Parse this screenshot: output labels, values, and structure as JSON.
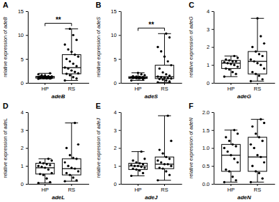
{
  "chart_data": [
    {
      "type": "box",
      "title": "A",
      "x_label": "adeB",
      "y_label": "relative expression of adeB",
      "categories": [
        "HP",
        "RS"
      ],
      "ylim": [
        0,
        15
      ],
      "yticks": [
        0,
        5,
        10,
        15
      ],
      "annotation": "**",
      "boxes": [
        {
          "min": 0.85,
          "q1": 1.0,
          "median": 1.2,
          "q3": 1.35,
          "max": 2.0,
          "points": [
            0.85,
            0.9,
            0.95,
            1.0,
            1.0,
            1.05,
            1.1,
            1.1,
            1.15,
            1.2,
            1.2,
            1.25,
            1.3,
            1.3,
            1.35,
            1.4,
            1.5,
            1.6,
            1.8,
            2.0
          ]
        },
        {
          "min": 0.5,
          "q1": 1.9,
          "median": 3.2,
          "q3": 5.9,
          "max": 11.3,
          "points": [
            0.5,
            0.9,
            1.2,
            1.6,
            1.9,
            2.0,
            2.3,
            2.6,
            3.0,
            3.2,
            3.5,
            4.0,
            4.5,
            5.0,
            5.5,
            5.9,
            6.5,
            7.0,
            8.0,
            9.0,
            10.0,
            11.3
          ]
        }
      ]
    },
    {
      "type": "box",
      "title": "B",
      "x_label": "adeS",
      "y_label": "relative expression of adeS",
      "categories": [
        "HP",
        "RS"
      ],
      "ylim": [
        0,
        15
      ],
      "yticks": [
        0,
        5,
        10,
        15
      ],
      "annotation": "**",
      "boxes": [
        {
          "min": 0.5,
          "q1": 0.95,
          "median": 1.1,
          "q3": 1.3,
          "max": 2.1,
          "points": [
            0.5,
            0.8,
            0.9,
            0.95,
            1.0,
            1.0,
            1.05,
            1.1,
            1.1,
            1.15,
            1.2,
            1.25,
            1.3,
            1.4,
            1.6,
            1.8,
            2.1
          ]
        },
        {
          "min": 0.1,
          "q1": 0.9,
          "median": 1.3,
          "q3": 3.7,
          "max": 10.3,
          "points": [
            0.1,
            0.3,
            0.5,
            0.7,
            0.8,
            0.9,
            1.0,
            1.1,
            1.2,
            1.3,
            1.5,
            1.8,
            2.2,
            3.0,
            3.7,
            4.5,
            5.5,
            6.6,
            7.5,
            9.5,
            10.3
          ]
        }
      ]
    },
    {
      "type": "box",
      "title": "C",
      "x_label": "adeG",
      "y_label": "relative expression of adeG",
      "categories": [
        "HP",
        "RS"
      ],
      "ylim": [
        0,
        4
      ],
      "yticks": [
        0,
        1,
        2,
        3,
        4
      ],
      "boxes": [
        {
          "min": 0.35,
          "q1": 0.8,
          "median": 1.1,
          "q3": 1.25,
          "max": 1.5,
          "points": [
            0.35,
            0.5,
            0.6,
            0.75,
            0.8,
            0.9,
            1.0,
            1.05,
            1.1,
            1.15,
            1.2,
            1.2,
            1.25,
            1.3,
            1.4,
            1.5
          ]
        },
        {
          "min": 0.1,
          "q1": 0.5,
          "median": 1.2,
          "q3": 1.75,
          "max": 3.6,
          "points": [
            0.1,
            0.2,
            0.4,
            0.5,
            0.6,
            0.8,
            1.0,
            1.1,
            1.2,
            1.3,
            1.5,
            1.6,
            1.75,
            2.0,
            2.2,
            2.6,
            3.6
          ]
        }
      ]
    },
    {
      "type": "box",
      "title": "D",
      "x_label": "adeL",
      "y_label": "relative expression of adeL",
      "categories": [
        "HP",
        "RS"
      ],
      "ylim": [
        0,
        4
      ],
      "yticks": [
        0,
        1,
        2,
        3,
        4
      ],
      "boxes": [
        {
          "min": 0.05,
          "q1": 0.55,
          "median": 0.9,
          "q3": 1.15,
          "max": 1.4,
          "points": [
            0.05,
            0.1,
            0.3,
            0.5,
            0.55,
            0.6,
            0.8,
            0.9,
            0.95,
            1.0,
            1.05,
            1.1,
            1.15,
            1.2,
            1.3,
            1.4
          ]
        },
        {
          "min": 0.15,
          "q1": 0.5,
          "median": 0.85,
          "q3": 1.4,
          "max": 3.4,
          "points": [
            0.15,
            0.2,
            0.35,
            0.5,
            0.6,
            0.7,
            0.85,
            0.9,
            1.0,
            1.2,
            1.4,
            1.45,
            1.6,
            2.0,
            2.2,
            3.4
          ]
        }
      ]
    },
    {
      "type": "box",
      "title": "E",
      "x_label": "adeJ",
      "y_label": "relative expression of adeJ",
      "categories": [
        "HP",
        "RS"
      ],
      "ylim": [
        0,
        4
      ],
      "yticks": [
        0,
        1,
        2,
        3,
        4
      ],
      "boxes": [
        {
          "min": 0.45,
          "q1": 0.8,
          "median": 1.0,
          "q3": 1.15,
          "max": 1.8,
          "points": [
            0.45,
            0.6,
            0.75,
            0.8,
            0.85,
            0.9,
            0.95,
            1.0,
            1.0,
            1.05,
            1.1,
            1.15,
            1.2,
            1.3,
            1.4,
            1.8
          ]
        },
        {
          "min": 0.2,
          "q1": 0.85,
          "median": 1.1,
          "q3": 1.5,
          "max": 3.8,
          "points": [
            0.2,
            0.5,
            0.7,
            0.85,
            0.9,
            1.0,
            1.1,
            1.1,
            1.2,
            1.3,
            1.4,
            1.5,
            1.7,
            1.9,
            2.4,
            3.8
          ]
        }
      ]
    },
    {
      "type": "box",
      "title": "F",
      "x_label": "adeN",
      "y_label": "relative expression of adeN",
      "categories": [
        "HP",
        "RS"
      ],
      "ylim": [
        0,
        2
      ],
      "yticks": [
        {
          "value": 0,
          "label": "0.0"
        },
        0.5,
        {
          "value": 1,
          "label": "1.0"
        },
        1.5,
        {
          "value": 2,
          "label": "2.0"
        }
      ],
      "boxes": [
        {
          "min": 0.05,
          "q1": 0.35,
          "median": 0.8,
          "q3": 1.1,
          "max": 1.5,
          "points": [
            0.05,
            0.1,
            0.2,
            0.35,
            0.4,
            0.6,
            0.7,
            0.8,
            0.9,
            1.0,
            1.05,
            1.1,
            1.2,
            1.3,
            1.4,
            1.5
          ]
        },
        {
          "min": 0.05,
          "q1": 0.35,
          "median": 0.75,
          "q3": 1.3,
          "max": 1.8,
          "points": [
            0.05,
            0.15,
            0.3,
            0.35,
            0.5,
            0.6,
            0.75,
            0.8,
            1.0,
            1.1,
            1.2,
            1.3,
            1.4,
            1.6,
            1.7,
            1.8
          ]
        }
      ]
    }
  ]
}
